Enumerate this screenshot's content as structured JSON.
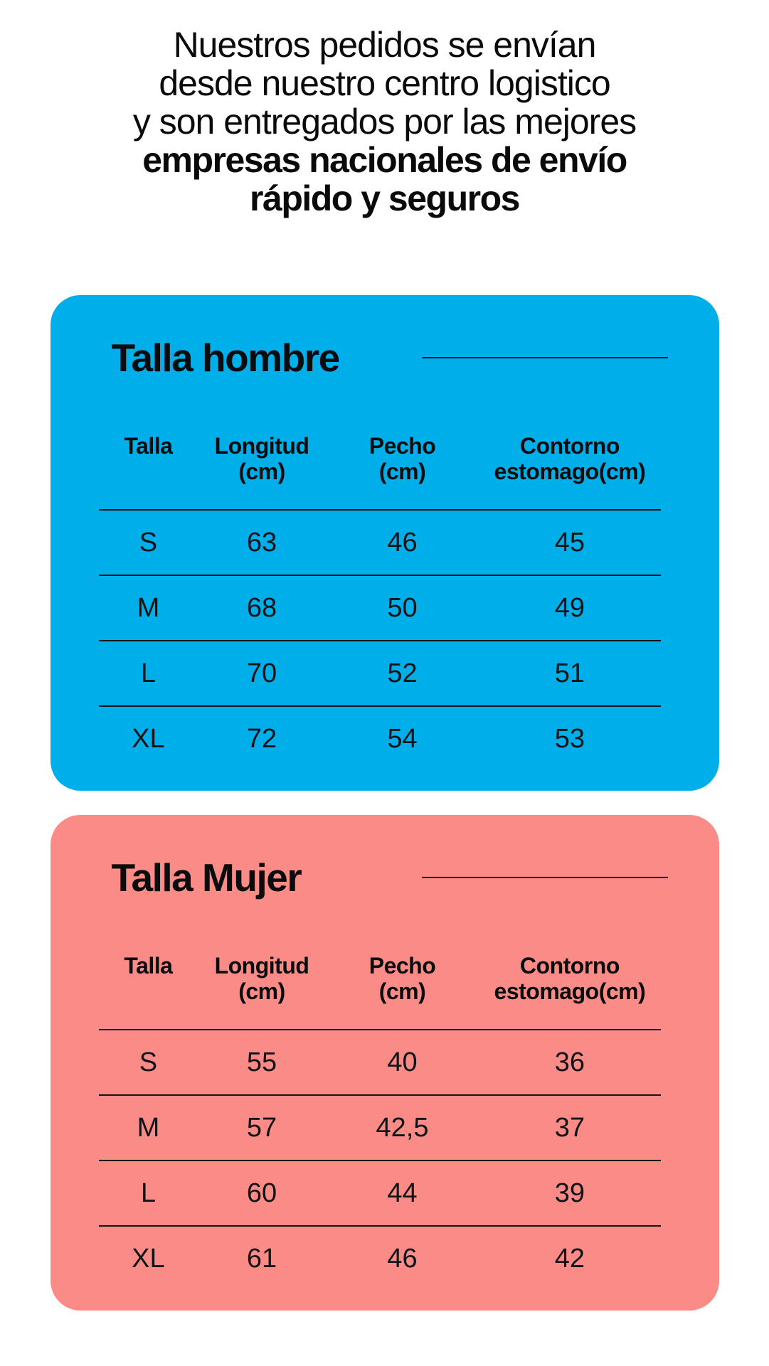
{
  "intro": {
    "lines": [
      "Nuestros pedidos se envían",
      "desde nuestro centro logistico",
      "y son entregados por las mejores"
    ],
    "bold_lines": [
      "empresas nacionales de envío",
      "rápido y seguros"
    ]
  },
  "colors": {
    "men_card_background": "#00AEE9",
    "women_card_background": "#FA8B86",
    "divider_line": "#14181B",
    "text": "#0A0C0D",
    "page_background": "#FFFFFF"
  },
  "size_charts": [
    {
      "title": "Talla hombre",
      "columns": [
        {
          "line1": "Talla",
          "line2": ""
        },
        {
          "line1": "Longitud",
          "line2": "(cm)"
        },
        {
          "line1": "Pecho",
          "line2": "(cm)"
        },
        {
          "line1": "Contorno",
          "line2": "estomago(cm)"
        }
      ],
      "rows": [
        [
          "S",
          "63",
          "46",
          "45"
        ],
        [
          "M",
          "68",
          "50",
          "49"
        ],
        [
          "L",
          "70",
          "52",
          "51"
        ],
        [
          "XL",
          "72",
          "54",
          "53"
        ]
      ]
    },
    {
      "title": "Talla Mujer",
      "columns": [
        {
          "line1": "Talla",
          "line2": ""
        },
        {
          "line1": "Longitud",
          "line2": "(cm)"
        },
        {
          "line1": "Pecho",
          "line2": "(cm)"
        },
        {
          "line1": "Contorno",
          "line2": "estomago(cm)"
        }
      ],
      "rows": [
        [
          "S",
          "55",
          "40",
          "36"
        ],
        [
          "M",
          "57",
          "42,5",
          "37"
        ],
        [
          "L",
          "60",
          "44",
          "39"
        ],
        [
          "XL",
          "61",
          "46",
          "42"
        ]
      ]
    }
  ]
}
